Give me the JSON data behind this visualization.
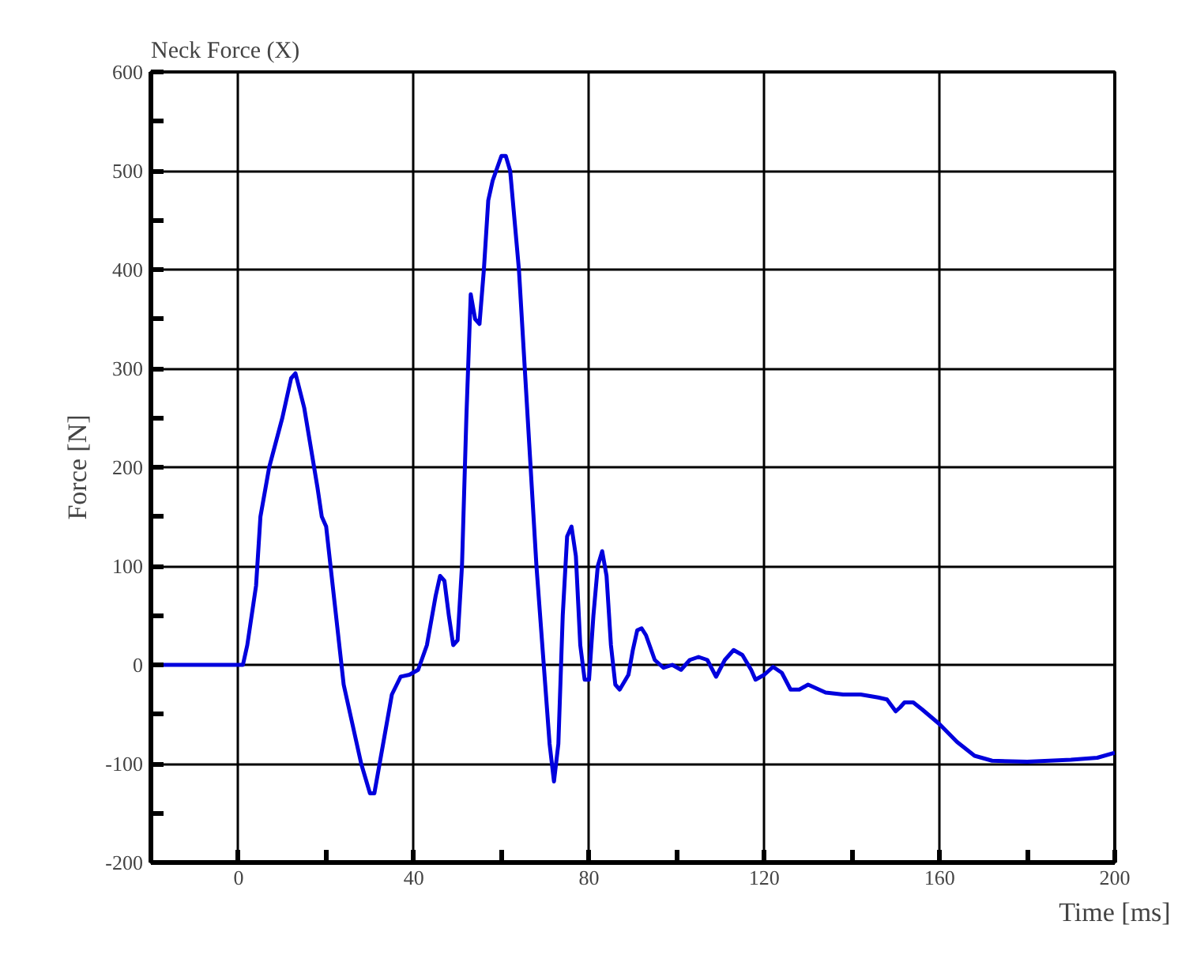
{
  "chart_data": {
    "type": "line",
    "title": "Neck Force (X)",
    "xlabel": "Time [ms]",
    "ylabel": "Force [N]",
    "x": [
      -20,
      0,
      1,
      2,
      4,
      5,
      7,
      10,
      12,
      13,
      15,
      18,
      19,
      20,
      22,
      24,
      26,
      28,
      30,
      31,
      33,
      35,
      37,
      39,
      41,
      43,
      45,
      46,
      47,
      48,
      49,
      50,
      51,
      52,
      53,
      54,
      55,
      56,
      57,
      58,
      60,
      61,
      62,
      64,
      66,
      68,
      70,
      71,
      72,
      73,
      74,
      75,
      76,
      77,
      78,
      79,
      80,
      81,
      82,
      83,
      84,
      85,
      86,
      87,
      89,
      90,
      91,
      92,
      93,
      95,
      97,
      99,
      101,
      103,
      105,
      107,
      109,
      111,
      113,
      115,
      117,
      118,
      120,
      122,
      124,
      126,
      128,
      130,
      134,
      138,
      142,
      146,
      148,
      150,
      151,
      152,
      154,
      156,
      160,
      164,
      168,
      172,
      180,
      190,
      196,
      200
    ],
    "series": [
      {
        "color": "#0000dd",
        "values": [
          0,
          0,
          0,
          20,
          80,
          150,
          200,
          250,
          290,
          295,
          260,
          180,
          150,
          140,
          60,
          -20,
          -60,
          -100,
          -130,
          -130,
          -80,
          -30,
          -12,
          -10,
          -5,
          20,
          70,
          90,
          85,
          50,
          20,
          25,
          100,
          250,
          375,
          350,
          345,
          400,
          470,
          490,
          515,
          515,
          500,
          400,
          250,
          100,
          -20,
          -80,
          -118,
          -80,
          50,
          130,
          140,
          110,
          20,
          -15,
          -15,
          50,
          100,
          115,
          90,
          20,
          -20,
          -25,
          -10,
          15,
          35,
          37,
          30,
          5,
          -3,
          0,
          -5,
          5,
          8,
          5,
          -12,
          5,
          15,
          10,
          -5,
          -15,
          -10,
          -2,
          -8,
          -25,
          -25,
          -20,
          -28,
          -30,
          -30,
          -33,
          -35,
          -47,
          -43,
          -38,
          -38,
          -45,
          -60,
          -78,
          -92,
          -97,
          -98,
          -96,
          -94,
          -89
        ]
      }
    ],
    "xlim": [
      -20,
      200
    ],
    "ylim": [
      -200,
      600
    ],
    "xticks": [
      0,
      {
        "value": 20,
        "label": null
      },
      40,
      {
        "value": 60,
        "label": null
      },
      80,
      {
        "value": 100,
        "label": null
      },
      120,
      {
        "value": 140,
        "label": null
      },
      160,
      {
        "value": 180,
        "label": null
      },
      200
    ],
    "yticks": [
      -200,
      {
        "value": -150,
        "label": null
      },
      -100,
      {
        "value": -50,
        "label": null
      },
      0,
      {
        "value": 50,
        "label": null
      },
      100,
      {
        "value": 150,
        "label": null
      },
      200,
      {
        "value": 250,
        "label": null
      },
      300,
      {
        "value": 350,
        "label": null
      },
      400,
      {
        "value": 450,
        "label": null
      },
      500,
      {
        "value": 550,
        "label": null
      },
      600
    ],
    "grid": true,
    "line_style": "solid",
    "marker": "none"
  }
}
